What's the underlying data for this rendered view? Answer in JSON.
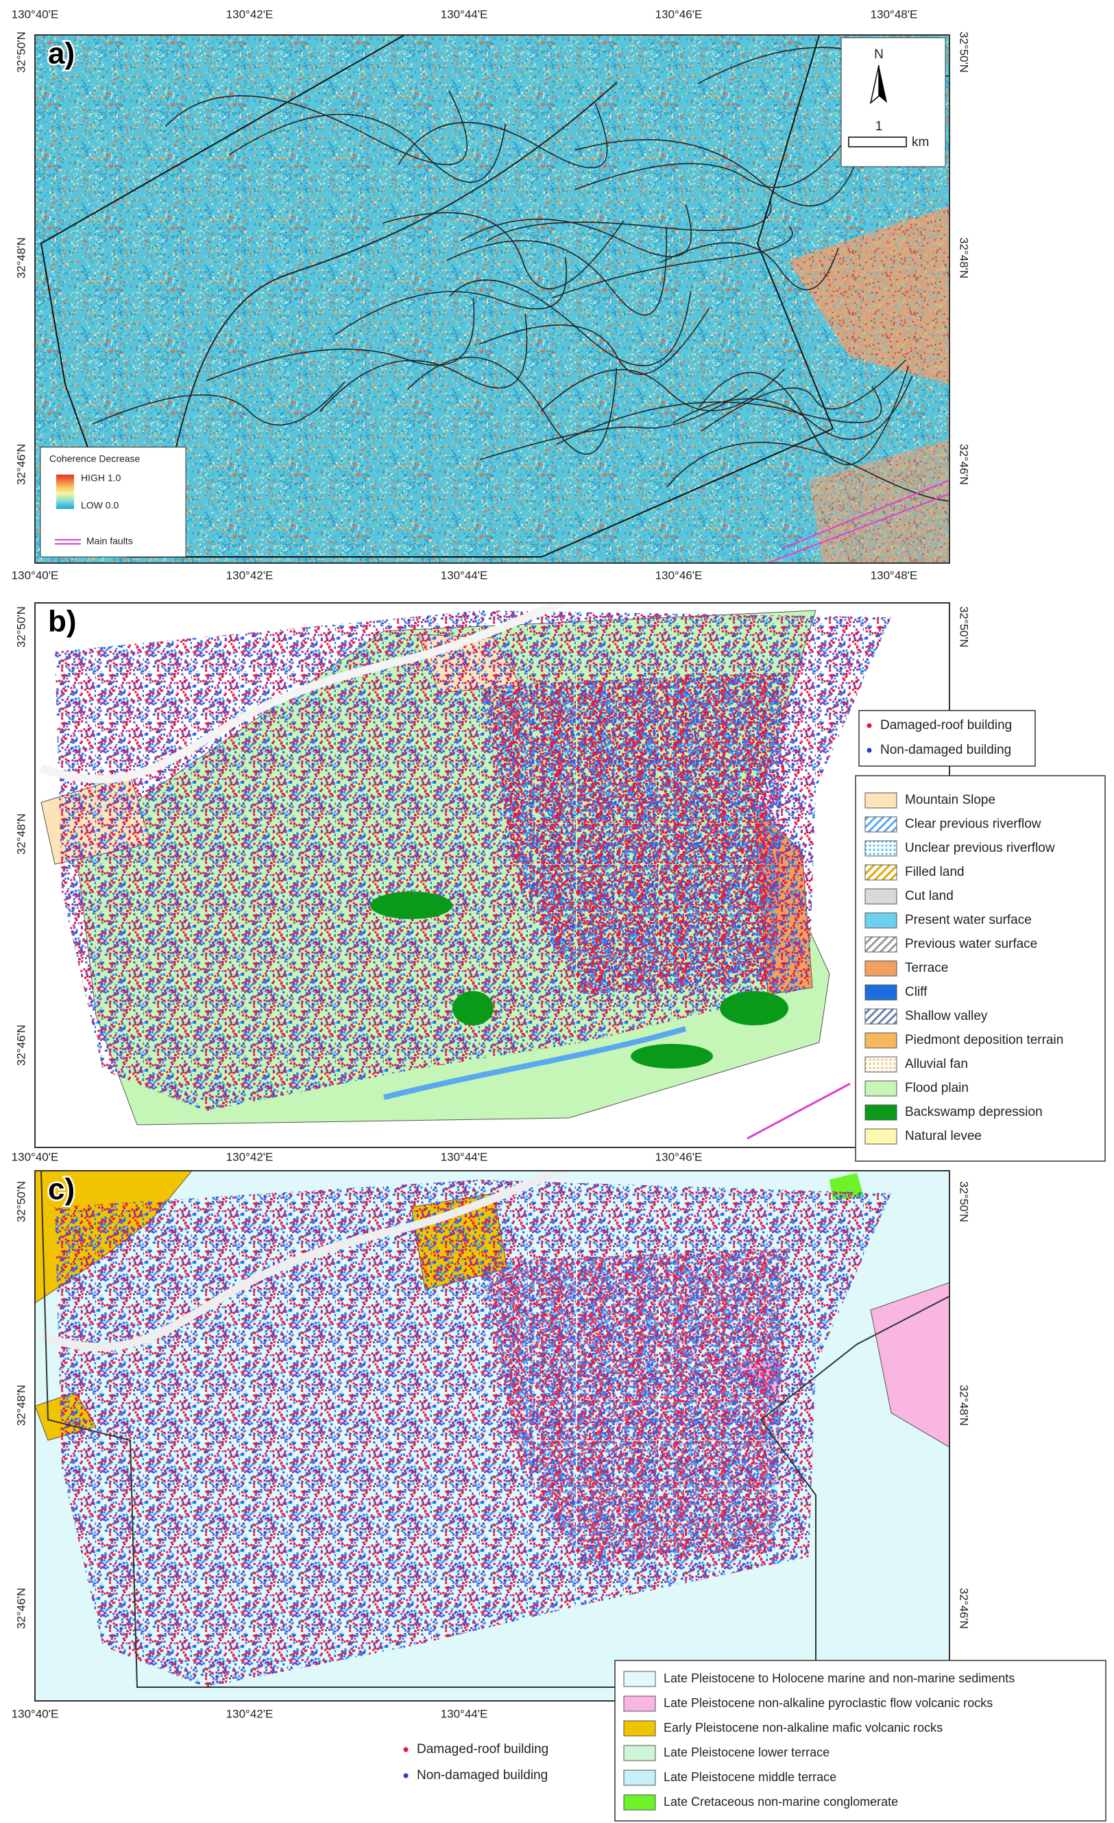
{
  "panels": [
    {
      "label": "a)",
      "lon_top": [
        "130°40'E",
        "130°42'E",
        "130°44'E",
        "130°46'E",
        "130°48'E"
      ],
      "lon_bottom": [
        "130°40'E",
        "130°42'E",
        "130°44'E",
        "130°46'E",
        "130°48'E"
      ],
      "lat_left": [
        "32°50'N",
        "32°48'N",
        "32°46'N"
      ],
      "lat_right": [
        "32°50'N",
        "32°48'N",
        "32°46'N"
      ],
      "north": {
        "arrow": "N",
        "scale": "1",
        "unit": "km"
      },
      "legend": {
        "title": "Coherence Decrease",
        "high": "HIGH 1.0",
        "low": "LOW 0.0",
        "faults": "Main faults"
      }
    },
    {
      "label": "b)",
      "lon_bottom": [
        "130°40'E",
        "130°42'E",
        "130°44'E",
        "130°46'E"
      ],
      "lat_left": [
        "32°50'N",
        "32°48'N",
        "32°46'N"
      ],
      "lat_right": [
        "32°50'N",
        "32°48'N",
        "32°46'N"
      ],
      "buildings": [
        {
          "name": "Damaged-roof building",
          "color": "#e8163a"
        },
        {
          "name": "Non-damaged building",
          "color": "#1f3fd6"
        }
      ],
      "units": [
        {
          "name": "Mountain Slope",
          "color": "#fde3b8"
        },
        {
          "name": "Clear previous riverflow",
          "color": "#5aa8f0",
          "pattern": "hatch"
        },
        {
          "name": "Unclear previous riverflow",
          "color": "#52bfee",
          "pattern": "dots"
        },
        {
          "name": "Filled land",
          "color": "#e0a800",
          "pattern": "hatch"
        },
        {
          "name": "Cut land",
          "color": "#d9d9d9"
        },
        {
          "name": "Present water surface",
          "color": "#6ed0f0"
        },
        {
          "name": "Previous water surface",
          "color": "#9a9a9a",
          "pattern": "hatch"
        },
        {
          "name": "Terrace",
          "color": "#f2a060"
        },
        {
          "name": "Cliff",
          "color": "#1a6fe0"
        },
        {
          "name": "Shallow valley",
          "color": "#7080b0",
          "pattern": "hatch"
        },
        {
          "name": "Piedmont deposition terrain",
          "color": "#f5b85a"
        },
        {
          "name": "Alluvial fan",
          "color": "#f0c070",
          "pattern": "dots"
        },
        {
          "name": "Flood plain",
          "color": "#c6f5b8"
        },
        {
          "name": "Backswamp depression",
          "color": "#0a9a1a"
        },
        {
          "name": "Natural levee",
          "color": "#fff8b0"
        }
      ]
    },
    {
      "label": "c)",
      "lon_bottom": [
        "130°40'E",
        "130°42'E",
        "130°44'E"
      ],
      "lat_left": [
        "32°50'N",
        "32°48'N",
        "32°46'N"
      ],
      "lat_right": [
        "32°50'N",
        "32°48'N",
        "32°46'N"
      ],
      "units": [
        {
          "name": "Late Pleistocene to Holocene marine and non-marine sediments",
          "color": "#e4fafa"
        },
        {
          "name": "Late Pleistocene non-alkaline pyroclastic flow volcanic rocks",
          "color": "#f8b6e0"
        },
        {
          "name": "Early Pleistocene non-alkaline mafic volcanic rocks",
          "color": "#f0c400"
        },
        {
          "name": "Late Pleistocene lower terrace",
          "color": "#cff5d8"
        },
        {
          "name": "Late Pleistocene middle terrace",
          "color": "#c8f0f8"
        },
        {
          "name": "Late Cretaceous non-marine conglomerate",
          "color": "#6ef22a"
        }
      ],
      "buildings": [
        {
          "name": "Damaged-roof building",
          "color": "#e8163a"
        },
        {
          "name": "Non-damaged building",
          "color": "#1f3fd6"
        }
      ]
    }
  ]
}
